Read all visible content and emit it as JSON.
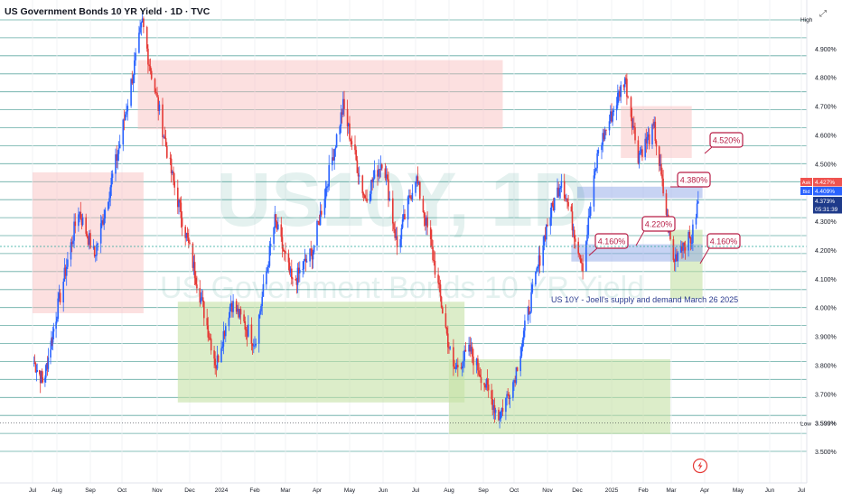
{
  "header": {
    "title": "US Government Bonds 10 YR Yield · 1D · TVC"
  },
  "watermark": {
    "symbol": "US10Y, 1D",
    "name": "US Government Bonds 10 YR Yield"
  },
  "annotation_note": "US 10Y - Joell's supply and demand March 26 2025",
  "icons": {
    "top_right": "expand-icon",
    "lightning": "lightning-icon"
  },
  "price_badges": [
    {
      "label": "Ask",
      "value": "4.427%",
      "color": "#ef5350"
    },
    {
      "label": "Bid",
      "value": "4.409%",
      "color": "#2962ff"
    },
    {
      "label": "",
      "value": "4.373%",
      "color": "#1e3a8a"
    },
    {
      "label": "",
      "value": "05:31:39",
      "color": "#1e3a8a"
    }
  ],
  "high_low": {
    "high_label": "High",
    "low_label": "Low",
    "low_value": "3.599%"
  },
  "chart_data": {
    "type": "candlestick",
    "title": "US Government Bonds 10 YR Yield · 1D · TVC",
    "y_ticks": [
      "4.900%",
      "4.800%",
      "4.700%",
      "4.600%",
      "4.500%",
      "4.400%",
      "4.300%",
      "4.200%",
      "4.100%",
      "4.000%",
      "3.900%",
      "3.800%",
      "3.700%",
      "3.599%",
      "3.500%"
    ],
    "ylim": [
      3.45,
      5.02
    ],
    "x_ticks": [
      "Jul",
      "Aug",
      "Sep",
      "Oct",
      "Nov",
      "Dec",
      "2024",
      "Feb",
      "Mar",
      "Apr",
      "May",
      "Jun",
      "Jul",
      "Aug",
      "Sep",
      "Oct",
      "Nov",
      "Dec",
      "2025",
      "Feb",
      "Mar",
      "Apr",
      "May",
      "Jun",
      "Jul"
    ],
    "level_labels": [
      {
        "text": "4.520%",
        "price": 4.52
      },
      {
        "text": "4.380%",
        "price": 4.38
      },
      {
        "text": "4.220%",
        "price": 4.22
      },
      {
        "text": "4.160%",
        "price": 4.16
      },
      {
        "text": "4.160%",
        "price": 4.16
      }
    ],
    "zones": [
      {
        "kind": "supply",
        "start": "2023-07-01",
        "end": "2023-10-20",
        "low": 3.98,
        "high": 4.47
      },
      {
        "kind": "supply",
        "start": "2023-10-15",
        "end": "2024-09-20",
        "low": 4.62,
        "high": 4.86
      },
      {
        "kind": "supply",
        "start": "2025-01-10",
        "end": "2025-03-20",
        "low": 4.52,
        "high": 4.7
      },
      {
        "kind": "demand",
        "start": "2023-11-20",
        "end": "2024-08-15",
        "low": 3.67,
        "high": 4.02
      },
      {
        "kind": "demand",
        "start": "2024-08-01",
        "end": "2025-02-28",
        "low": 3.56,
        "high": 3.82
      },
      {
        "kind": "demand",
        "start": "2025-02-28",
        "end": "2025-03-30",
        "low": 4.03,
        "high": 4.27
      },
      {
        "kind": "blue",
        "start": "2024-12-01",
        "end": "2025-03-30",
        "low": 4.38,
        "high": 4.42
      },
      {
        "kind": "blue",
        "start": "2024-11-25",
        "end": "2025-03-30",
        "low": 4.16,
        "high": 4.22
      }
    ],
    "series": [
      {
        "date": "2023-07-01",
        "value": 3.82
      },
      {
        "date": "2023-07-15",
        "value": 3.74
      },
      {
        "date": "2023-07-31",
        "value": 3.97
      },
      {
        "date": "2023-08-21",
        "value": 4.34
      },
      {
        "date": "2023-09-05",
        "value": 4.18
      },
      {
        "date": "2023-09-29",
        "value": 4.57
      },
      {
        "date": "2023-10-19",
        "value": 4.99
      },
      {
        "date": "2023-10-25",
        "value": 4.85
      },
      {
        "date": "2023-11-15",
        "value": 4.45
      },
      {
        "date": "2023-12-01",
        "value": 4.2
      },
      {
        "date": "2023-12-27",
        "value": 3.8
      },
      {
        "date": "2024-01-10",
        "value": 4.02
      },
      {
        "date": "2024-02-01",
        "value": 3.88
      },
      {
        "date": "2024-02-20",
        "value": 4.3
      },
      {
        "date": "2024-03-08",
        "value": 4.08
      },
      {
        "date": "2024-03-28",
        "value": 4.2
      },
      {
        "date": "2024-04-25",
        "value": 4.7
      },
      {
        "date": "2024-05-15",
        "value": 4.38
      },
      {
        "date": "2024-06-01",
        "value": 4.52
      },
      {
        "date": "2024-06-14",
        "value": 4.21
      },
      {
        "date": "2024-07-01",
        "value": 4.46
      },
      {
        "date": "2024-07-15",
        "value": 4.22
      },
      {
        "date": "2024-08-05",
        "value": 3.78
      },
      {
        "date": "2024-08-20",
        "value": 3.85
      },
      {
        "date": "2024-09-16",
        "value": 3.62
      },
      {
        "date": "2024-10-01",
        "value": 3.75
      },
      {
        "date": "2024-10-31",
        "value": 4.28
      },
      {
        "date": "2024-11-15",
        "value": 4.45
      },
      {
        "date": "2024-12-06",
        "value": 4.15
      },
      {
        "date": "2024-12-20",
        "value": 4.55
      },
      {
        "date": "2025-01-14",
        "value": 4.8
      },
      {
        "date": "2025-01-27",
        "value": 4.53
      },
      {
        "date": "2025-02-12",
        "value": 4.62
      },
      {
        "date": "2025-03-03",
        "value": 4.16
      },
      {
        "date": "2025-03-10",
        "value": 4.22
      },
      {
        "date": "2025-03-20",
        "value": 4.24
      },
      {
        "date": "2025-03-26",
        "value": 4.37
      }
    ]
  }
}
